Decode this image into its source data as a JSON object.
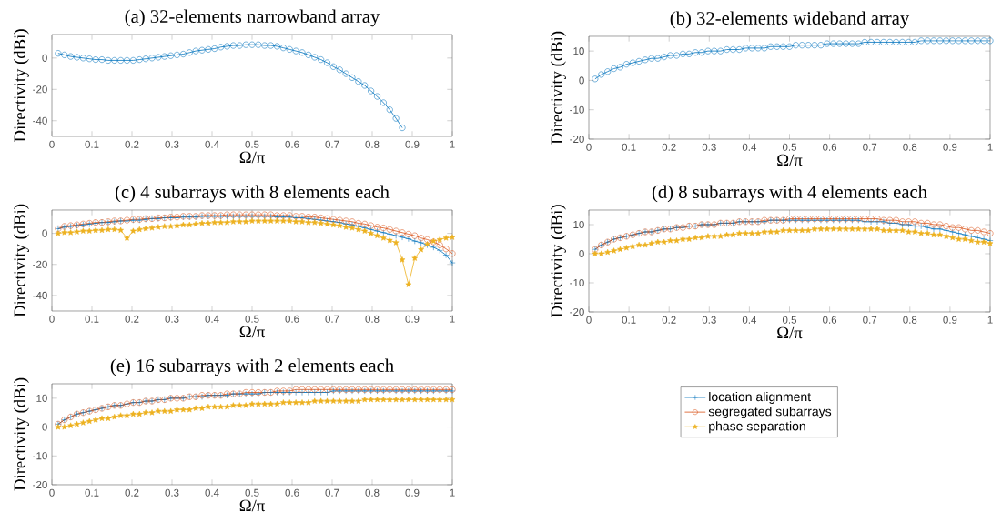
{
  "chart_data": [
    {
      "type": "line",
      "title": "(a) 32-elements narrowband array",
      "xlabel": "Ω/π",
      "ylabel": "Directivity (dBi)",
      "xlim": [
        0,
        1
      ],
      "ylim": [
        -50,
        15
      ],
      "xticks": [
        0,
        0.1,
        0.2,
        0.3,
        0.4,
        0.5,
        0.6,
        0.7,
        0.8,
        0.9,
        1
      ],
      "yticks": [
        -40,
        -20,
        0
      ],
      "x": [
        0.0156,
        0.0313,
        0.0469,
        0.0625,
        0.0781,
        0.0938,
        0.1094,
        0.125,
        0.1406,
        0.1563,
        0.1719,
        0.1875,
        0.2031,
        0.2188,
        0.2344,
        0.25,
        0.2656,
        0.2813,
        0.2969,
        0.3125,
        0.3281,
        0.3438,
        0.3594,
        0.375,
        0.3906,
        0.4063,
        0.4219,
        0.4375,
        0.4531,
        0.4688,
        0.4844,
        0.5,
        0.5156,
        0.5313,
        0.5469,
        0.5625,
        0.5781,
        0.5938,
        0.6094,
        0.625,
        0.6406,
        0.6563,
        0.6719,
        0.6875,
        0.7031,
        0.7188,
        0.7344,
        0.75,
        0.7656,
        0.7813,
        0.7969,
        0.8125,
        0.8281,
        0.8438,
        0.8594,
        0.875
      ],
      "series": [
        {
          "color": "#0072bd",
          "marker": "circle",
          "values": [
            3,
            2,
            1,
            0.5,
            0,
            -0.5,
            -1,
            -1,
            -1.5,
            -1.5,
            -1.5,
            -1.5,
            -1.5,
            -1,
            -0.5,
            0,
            0.5,
            1,
            1.5,
            2,
            2.5,
            3.5,
            4.5,
            5,
            5.5,
            6,
            7,
            7.5,
            8,
            8,
            8.5,
            8.5,
            8.5,
            8,
            8,
            7.5,
            6.5,
            5.5,
            4.5,
            3.5,
            2,
            0.5,
            -1,
            -3,
            -5.5,
            -7.5,
            -10,
            -12.5,
            -15,
            -17.5,
            -21,
            -24.5,
            -28.5,
            -33,
            -38.5,
            -44.5
          ]
        }
      ]
    },
    {
      "type": "line",
      "title": "(b) 32-elements wideband array",
      "xlabel": "Ω/π",
      "ylabel": "Directivity (dBi)",
      "xlim": [
        0,
        1
      ],
      "ylim": [
        -20,
        15
      ],
      "xticks": [
        0,
        0.1,
        0.2,
        0.3,
        0.4,
        0.5,
        0.6,
        0.7,
        0.8,
        0.9,
        1
      ],
      "yticks": [
        -20,
        -10,
        0,
        10
      ],
      "x": [
        0.0156,
        0.0313,
        0.0469,
        0.0625,
        0.0781,
        0.0938,
        0.1094,
        0.125,
        0.1406,
        0.1563,
        0.1719,
        0.1875,
        0.2031,
        0.2188,
        0.2344,
        0.25,
        0.2656,
        0.2813,
        0.2969,
        0.3125,
        0.3281,
        0.3438,
        0.3594,
        0.375,
        0.3906,
        0.4063,
        0.4219,
        0.4375,
        0.4531,
        0.4688,
        0.4844,
        0.5,
        0.5156,
        0.5313,
        0.5469,
        0.5625,
        0.5781,
        0.5938,
        0.6094,
        0.625,
        0.6406,
        0.6563,
        0.6719,
        0.6875,
        0.7031,
        0.7188,
        0.7344,
        0.75,
        0.7656,
        0.7813,
        0.7969,
        0.8125,
        0.8281,
        0.8438,
        0.8594,
        0.875,
        0.8906,
        0.9063,
        0.9219,
        0.9375,
        0.9531,
        0.9688,
        0.9844,
        1
      ],
      "series": [
        {
          "color": "#0072bd",
          "marker": "circle",
          "values": [
            0.5,
            2,
            3,
            4,
            4.5,
            5.5,
            6,
            6.5,
            7,
            7.5,
            7.5,
            8,
            8.5,
            8.5,
            9,
            9,
            9.5,
            9.5,
            10,
            10,
            10,
            10.5,
            10.5,
            10.5,
            11,
            11,
            11,
            11,
            11.5,
            11.5,
            11.5,
            11.5,
            12,
            12,
            12,
            12,
            12,
            12.5,
            12.5,
            12.5,
            12.5,
            12.5,
            12.5,
            13,
            13,
            13,
            13,
            13,
            13,
            13,
            13,
            13,
            13.5,
            13.5,
            13.5,
            13.5,
            13.5,
            13.5,
            13.5,
            13.5,
            13.5,
            13.5,
            13.5,
            13.5
          ]
        }
      ]
    },
    {
      "type": "line",
      "title": "(c) 4 subarrays with 8 elements each",
      "xlabel": "Ω/π",
      "ylabel": "Directivity (dBi)",
      "xlim": [
        0,
        1
      ],
      "ylim": [
        -50,
        15
      ],
      "xticks": [
        0,
        0.1,
        0.2,
        0.3,
        0.4,
        0.5,
        0.6,
        0.7,
        0.8,
        0.9,
        1
      ],
      "yticks": [
        -40,
        -20,
        0
      ],
      "x": [
        0.0156,
        0.0313,
        0.0469,
        0.0625,
        0.0781,
        0.0938,
        0.1094,
        0.125,
        0.1406,
        0.1563,
        0.1719,
        0.1875,
        0.2031,
        0.2188,
        0.2344,
        0.25,
        0.2656,
        0.2813,
        0.2969,
        0.3125,
        0.3281,
        0.3438,
        0.3594,
        0.375,
        0.3906,
        0.4063,
        0.4219,
        0.4375,
        0.4531,
        0.4688,
        0.4844,
        0.5,
        0.5156,
        0.5313,
        0.5469,
        0.5625,
        0.5781,
        0.5938,
        0.6094,
        0.625,
        0.6406,
        0.6563,
        0.6719,
        0.6875,
        0.7031,
        0.7188,
        0.7344,
        0.75,
        0.7656,
        0.7813,
        0.7969,
        0.8125,
        0.8281,
        0.8438,
        0.8594,
        0.875,
        0.8906,
        0.9063,
        0.9219,
        0.9375,
        0.9531,
        0.9688,
        0.9844,
        1
      ],
      "series": [
        {
          "color": "#0072bd",
          "marker": "cross",
          "values": [
            3,
            4,
            4.5,
            5,
            5.5,
            6,
            6.5,
            7,
            7,
            7.5,
            8,
            8,
            8.5,
            8.5,
            9,
            9.5,
            9.5,
            10,
            10,
            10,
            10.5,
            10.5,
            10.5,
            11,
            11,
            11,
            11,
            11,
            11,
            11,
            11,
            11,
            11,
            11,
            11,
            10.5,
            10.5,
            10.5,
            10,
            10,
            9.5,
            9,
            8.5,
            8,
            7.5,
            7,
            6,
            5.5,
            4.5,
            3.5,
            2.5,
            1.5,
            0.5,
            -0.5,
            -1.5,
            -2.5,
            -3.5,
            -5,
            -6,
            -7.5,
            -9,
            -11,
            -14,
            -19
          ]
        },
        {
          "color": "#d95319",
          "marker": "circle",
          "values": [
            3,
            4.5,
            5,
            5.5,
            6,
            6.5,
            7,
            7,
            7.5,
            8,
            8,
            8.5,
            9,
            9,
            9.5,
            9.5,
            10,
            10,
            10.5,
            10.5,
            11,
            11,
            11,
            11.5,
            11.5,
            11.5,
            11.5,
            12,
            12,
            12,
            12,
            12,
            12,
            12,
            12,
            11.5,
            11.5,
            11.5,
            11,
            11,
            10.5,
            10.5,
            10,
            9.5,
            9,
            8.5,
            8,
            7.5,
            6.5,
            6,
            5,
            4,
            3.5,
            2.5,
            1.5,
            0.5,
            -0.5,
            -1.5,
            -3,
            -4,
            -5.5,
            -7.5,
            -10,
            -13
          ]
        },
        {
          "color": "#edb120",
          "marker": "star",
          "values": [
            0,
            0.5,
            0.5,
            1,
            1.5,
            1.5,
            2,
            2,
            2.5,
            2.5,
            2,
            -3,
            1.5,
            2.5,
            3,
            3.5,
            4,
            4.5,
            4.5,
            5,
            5.5,
            5.5,
            6,
            6.5,
            6.5,
            7,
            7,
            7,
            7.5,
            7.5,
            7.5,
            8,
            8,
            8,
            8,
            8,
            8,
            8,
            7.5,
            7.5,
            7,
            7,
            6.5,
            6,
            5.5,
            5,
            4,
            3.5,
            2.5,
            1.5,
            0,
            -1.5,
            -3,
            -4.5,
            -6,
            -17,
            -33,
            -16,
            -10.5,
            -7,
            -5,
            -4,
            -3,
            -2.5
          ]
        }
      ]
    },
    {
      "type": "line",
      "title": "(d) 8 subarrays with 4 elements each",
      "xlabel": "Ω/π",
      "ylabel": "Directivity (dBi)",
      "xlim": [
        0,
        1
      ],
      "ylim": [
        -20,
        15
      ],
      "xticks": [
        0,
        0.1,
        0.2,
        0.3,
        0.4,
        0.5,
        0.6,
        0.7,
        0.8,
        0.9,
        1
      ],
      "yticks": [
        -20,
        -10,
        0,
        10
      ],
      "x": [
        0.0156,
        0.0313,
        0.0469,
        0.0625,
        0.0781,
        0.0938,
        0.1094,
        0.125,
        0.1406,
        0.1563,
        0.1719,
        0.1875,
        0.2031,
        0.2188,
        0.2344,
        0.25,
        0.2656,
        0.2813,
        0.2969,
        0.3125,
        0.3281,
        0.3438,
        0.3594,
        0.375,
        0.3906,
        0.4063,
        0.4219,
        0.4375,
        0.4531,
        0.4688,
        0.4844,
        0.5,
        0.5156,
        0.5313,
        0.5469,
        0.5625,
        0.5781,
        0.5938,
        0.6094,
        0.625,
        0.6406,
        0.6563,
        0.6719,
        0.6875,
        0.7031,
        0.7188,
        0.7344,
        0.75,
        0.7656,
        0.7813,
        0.7969,
        0.8125,
        0.8281,
        0.8438,
        0.8594,
        0.875,
        0.8906,
        0.9063,
        0.9219,
        0.9375,
        0.9531,
        0.9688,
        0.9844,
        1
      ],
      "series": [
        {
          "color": "#0072bd",
          "marker": "cross",
          "values": [
            1.5,
            3,
            4,
            5,
            5.5,
            6,
            6.5,
            7,
            7.5,
            7.5,
            8,
            8.5,
            8.5,
            9,
            9,
            9.5,
            9.5,
            10,
            10,
            10,
            10.5,
            10.5,
            10.5,
            11,
            11,
            11,
            11,
            11,
            11.5,
            11.5,
            11.5,
            11.5,
            11.5,
            11.5,
            11.5,
            11.5,
            11.5,
            11.5,
            11.5,
            11.5,
            11.5,
            11.5,
            11.5,
            11,
            11,
            11,
            11,
            10.5,
            10.5,
            10,
            10,
            9.5,
            9.5,
            9,
            8.5,
            8.5,
            8,
            7.5,
            7,
            6.5,
            6,
            5.5,
            5,
            4.5
          ]
        },
        {
          "color": "#d95319",
          "marker": "circle",
          "values": [
            1.5,
            3,
            4,
            5,
            5.5,
            6,
            6.5,
            7,
            7.5,
            7.5,
            8,
            8.5,
            8.5,
            9,
            9,
            9.5,
            9.5,
            10,
            10,
            10,
            10.5,
            10.5,
            10.5,
            11,
            11,
            11,
            11,
            11.5,
            11.5,
            11.5,
            11.5,
            12,
            12,
            12,
            12,
            12,
            12,
            12,
            12,
            12,
            12,
            12,
            12,
            12,
            12,
            12,
            11.5,
            11.5,
            11.5,
            11,
            11,
            11,
            10.5,
            10.5,
            10,
            10,
            9.5,
            9,
            9,
            8.5,
            8,
            8,
            7.5,
            7
          ]
        },
        {
          "color": "#edb120",
          "marker": "star",
          "values": [
            0,
            0,
            0.5,
            1,
            1.5,
            2,
            2.5,
            3,
            3,
            3.5,
            4,
            4,
            4.5,
            4.5,
            5,
            5,
            5.5,
            5.5,
            6,
            6,
            6,
            6.5,
            6.5,
            7,
            7,
            7,
            7,
            7.5,
            7.5,
            7.5,
            8,
            8,
            8,
            8,
            8,
            8.5,
            8.5,
            8.5,
            8.5,
            8.5,
            8.5,
            8.5,
            8.5,
            8.5,
            8.5,
            8.5,
            8,
            8,
            8,
            8,
            7.5,
            7.5,
            7,
            7,
            6.5,
            6.5,
            6,
            5.5,
            5,
            5,
            4.5,
            4,
            4,
            3.5
          ]
        }
      ]
    },
    {
      "type": "line",
      "title": "(e) 16 subarrays with 2 elements each",
      "xlabel": "Ω/π",
      "ylabel": "Directivity (dBi)",
      "xlim": [
        0,
        1
      ],
      "ylim": [
        -20,
        15
      ],
      "xticks": [
        0,
        0.1,
        0.2,
        0.3,
        0.4,
        0.5,
        0.6,
        0.7,
        0.8,
        0.9,
        1
      ],
      "yticks": [
        -20,
        -10,
        0,
        10
      ],
      "legend": "right",
      "x": [
        0.0156,
        0.0313,
        0.0469,
        0.0625,
        0.0781,
        0.0938,
        0.1094,
        0.125,
        0.1406,
        0.1563,
        0.1719,
        0.1875,
        0.2031,
        0.2188,
        0.2344,
        0.25,
        0.2656,
        0.2813,
        0.2969,
        0.3125,
        0.3281,
        0.3438,
        0.3594,
        0.375,
        0.3906,
        0.4063,
        0.4219,
        0.4375,
        0.4531,
        0.4688,
        0.4844,
        0.5,
        0.5156,
        0.5313,
        0.5469,
        0.5625,
        0.5781,
        0.5938,
        0.6094,
        0.625,
        0.6406,
        0.6563,
        0.6719,
        0.6875,
        0.7031,
        0.7188,
        0.7344,
        0.75,
        0.7656,
        0.7813,
        0.7969,
        0.8125,
        0.8281,
        0.8438,
        0.8594,
        0.875,
        0.8906,
        0.9063,
        0.9219,
        0.9375,
        0.9531,
        0.9688,
        0.9844,
        1
      ],
      "series": [
        {
          "name": "location alignment",
          "color": "#0072bd",
          "marker": "cross",
          "values": [
            1,
            2.5,
            3.5,
            4.5,
            5,
            5.5,
            6,
            6.5,
            7,
            7.5,
            7.5,
            8,
            8.5,
            8.5,
            9,
            9,
            9.5,
            9.5,
            10,
            10,
            10,
            10.5,
            10.5,
            10.5,
            11,
            11,
            11,
            11,
            11.5,
            11.5,
            11.5,
            11.5,
            11.5,
            12,
            12,
            12,
            12,
            12,
            12,
            12,
            12,
            12,
            12,
            12,
            12.5,
            12.5,
            12.5,
            12.5,
            12.5,
            12.5,
            12.5,
            12.5,
            12.5,
            12.5,
            12.5,
            12.5,
            12.5,
            12.5,
            12.5,
            12.5,
            12.5,
            12.5,
            12.5,
            12.5
          ]
        },
        {
          "name": "segregated subarrays",
          "color": "#d95319",
          "marker": "circle",
          "values": [
            1,
            2.5,
            3.5,
            4.5,
            5,
            5.5,
            6,
            6.5,
            7,
            7.5,
            7.5,
            8,
            8.5,
            8.5,
            9,
            9,
            9.5,
            9.5,
            10,
            10,
            10,
            10.5,
            10.5,
            11,
            11,
            11,
            11,
            11.5,
            11.5,
            11.5,
            12,
            12,
            12,
            12,
            12,
            12.5,
            12.5,
            12.5,
            13,
            13,
            13,
            13,
            13,
            13,
            13,
            13,
            13,
            13,
            13,
            13,
            13,
            13,
            13,
            13,
            13,
            13,
            13,
            13,
            13,
            13,
            13,
            13,
            13,
            13
          ]
        },
        {
          "name": "phase separation",
          "color": "#edb120",
          "marker": "star",
          "values": [
            0,
            0,
            0.5,
            1,
            1.5,
            2,
            2.5,
            3,
            3,
            3.5,
            4,
            4,
            4.5,
            4.5,
            5,
            5,
            5.5,
            5.5,
            5.5,
            6,
            6,
            6,
            6.5,
            6.5,
            7,
            7,
            7,
            7,
            7.5,
            7.5,
            7.5,
            8,
            8,
            8,
            8,
            8,
            8.5,
            8.5,
            8.5,
            8.5,
            8.5,
            9,
            9,
            9,
            9,
            9,
            9,
            9,
            9,
            9.5,
            9.5,
            9.5,
            9.5,
            9.5,
            9.5,
            9.5,
            9.5,
            9.5,
            9.5,
            9.5,
            9.5,
            9.5,
            9.5,
            9.5
          ]
        }
      ]
    }
  ]
}
